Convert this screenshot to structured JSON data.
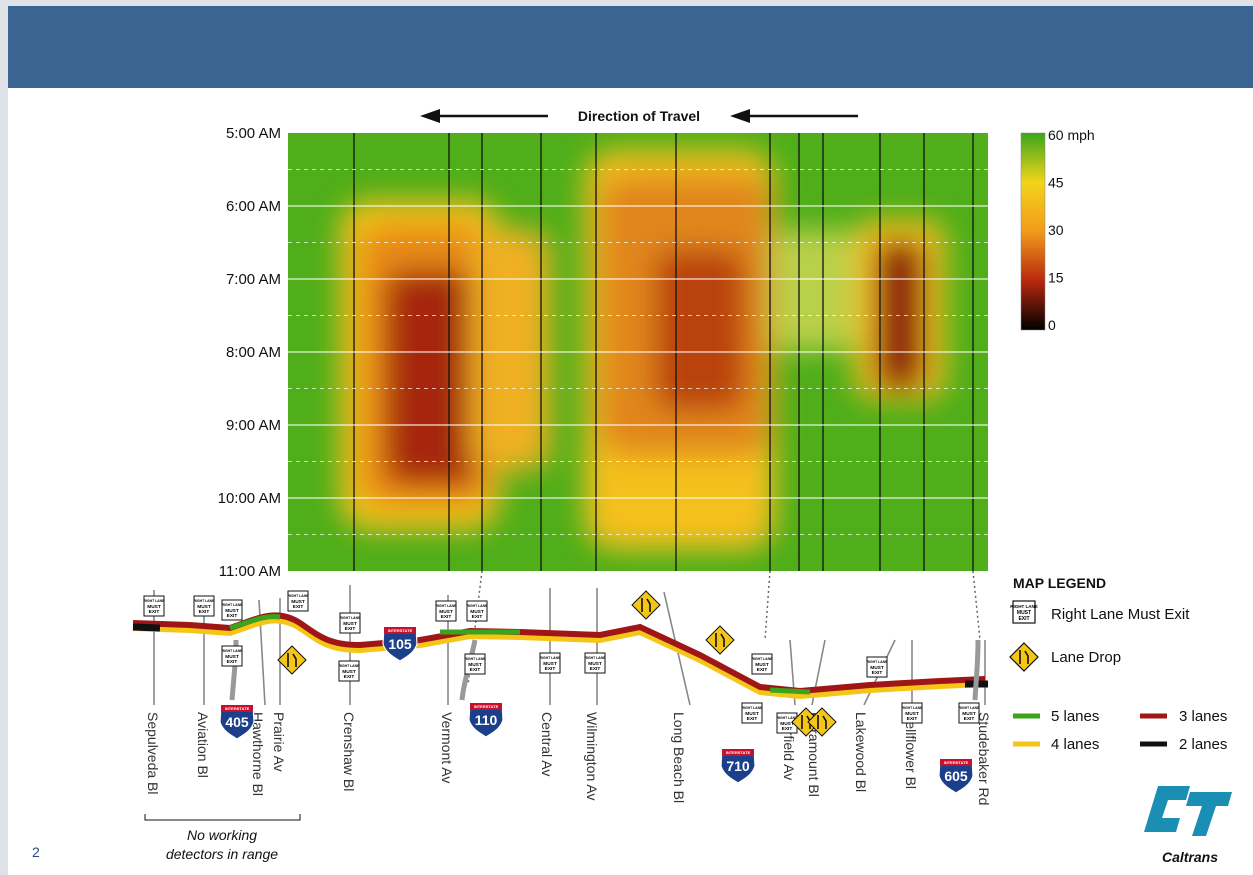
{
  "page": {
    "number": "2"
  },
  "chart_data": {
    "type": "heatmap",
    "direction_label": "Direction of Travel",
    "y_ticks": [
      "5:00 AM",
      "6:00 AM",
      "7:00 AM",
      "8:00 AM",
      "9:00 AM",
      "10:00 AM",
      "11:00 AM"
    ],
    "colorbar": {
      "ticks": [
        "60 mph",
        "45",
        "30",
        "15",
        "0"
      ],
      "values": [
        60,
        45,
        30,
        15,
        0
      ],
      "colors": [
        "#3aa51a",
        "#f2d51a",
        "#f29a1a",
        "#b8280e",
        "#000000"
      ]
    },
    "background_color": "#4fae1a",
    "congestion_regions": [
      {
        "from_street": "Crenshaw Bl",
        "to_street": "Vermont Av",
        "start": "6:15 AM",
        "end": "10:15 AM",
        "min_speed_mph": 15
      },
      {
        "from_street": "Vermont Av",
        "to_street": "Central Av",
        "start": "6:30 AM",
        "end": "9:30 AM",
        "min_speed_mph": 30
      },
      {
        "from_street": "Wilmington Av",
        "to_street": "Long Beach Bl",
        "start": "5:30 AM",
        "end": "10:45 AM",
        "min_speed_mph": 20
      },
      {
        "from_street": "Lakewood Bl",
        "to_street": "Bellflower Bl",
        "start": "6:30 AM",
        "end": "8:45 AM",
        "min_speed_mph": 15
      }
    ]
  },
  "map": {
    "streets": [
      "Sepulveda Bl",
      "Aviation Bl",
      "Hawthorne Bl",
      "Prairie Av",
      "Crenshaw Bl",
      "Vermont Av",
      "Central Av",
      "Wilmington Av",
      "Long Beach Bl",
      "Garfield Av",
      "Paramount Bl",
      "Lakewood Bl",
      "Bellflower Bl",
      "Studebaker Rd"
    ],
    "shields": [
      "405",
      "105",
      "110",
      "710",
      "605"
    ],
    "shield_top_text": "INTERSTATE",
    "exit_sign": {
      "line1": "RIGHT LANE",
      "line2": "MUST",
      "line3": "EXIT"
    },
    "no_detectors_note": {
      "line1": "No working",
      "line2": "detectors in range"
    }
  },
  "legend": {
    "title": "MAP LEGEND",
    "items": [
      {
        "label": "Right Lane Must Exit"
      },
      {
        "label": "Lane Drop"
      }
    ],
    "lanes": [
      {
        "label": "5 lanes",
        "color": "#3aa51a"
      },
      {
        "label": "3 lanes",
        "color": "#a01616"
      },
      {
        "label": "4 lanes",
        "color": "#f5c518"
      },
      {
        "label": "2 lanes",
        "color": "#111111"
      }
    ]
  },
  "logo": {
    "text": "Caltrans",
    "color": "#1a8fb3"
  }
}
